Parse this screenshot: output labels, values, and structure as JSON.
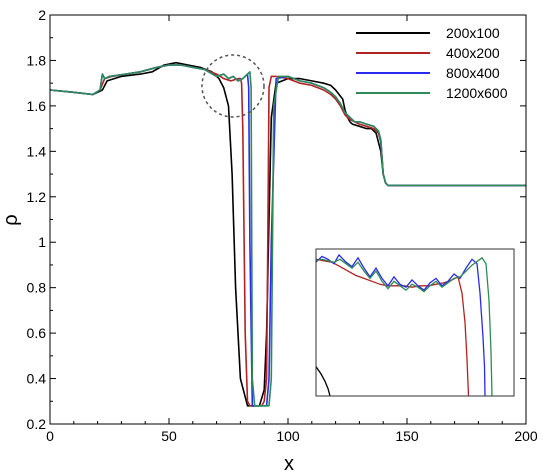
{
  "chart_data": {
    "type": "line",
    "xlabel": "x",
    "ylabel": "ρ",
    "xlim": [
      0,
      200
    ],
    "ylim": [
      0.2,
      2.0
    ],
    "xticks": [
      0,
      50,
      100,
      150,
      200
    ],
    "xtick_labels": [
      "0",
      "50",
      "100",
      "150",
      "200"
    ],
    "yticks": [
      0.2,
      0.4,
      0.6,
      0.8,
      1.0,
      1.2,
      1.4,
      1.6,
      1.8,
      2.0
    ],
    "ytick_labels": [
      "0.2",
      "0.4",
      "0.6",
      "0.8",
      "1",
      "1.2",
      "1.4",
      "1.6",
      "1.8",
      "2"
    ],
    "grid": false,
    "legend_position": "top-right",
    "series": [
      {
        "name": "200x100",
        "color": "#000000",
        "x": [
          0,
          10,
          18,
          22,
          24,
          30,
          38,
          43,
          48,
          53,
          58,
          63,
          68,
          71,
          73,
          75,
          76.5,
          78,
          80,
          83,
          84,
          86,
          88,
          90,
          91,
          92,
          93,
          95,
          100,
          105,
          110,
          115,
          118,
          120,
          123,
          124,
          125,
          126,
          127,
          130,
          133,
          135,
          137,
          139,
          140,
          141,
          142,
          145,
          150,
          160,
          175,
          190,
          200
        ],
        "y": [
          1.67,
          1.66,
          1.65,
          1.67,
          1.71,
          1.73,
          1.74,
          1.75,
          1.78,
          1.79,
          1.78,
          1.77,
          1.75,
          1.72,
          1.68,
          1.6,
          1.3,
          0.8,
          0.4,
          0.28,
          0.28,
          0.28,
          0.28,
          0.35,
          0.6,
          1.1,
          1.55,
          1.7,
          1.72,
          1.72,
          1.71,
          1.7,
          1.69,
          1.67,
          1.63,
          1.58,
          1.55,
          1.53,
          1.52,
          1.51,
          1.5,
          1.5,
          1.48,
          1.4,
          1.3,
          1.26,
          1.25,
          1.25,
          1.25,
          1.25,
          1.25,
          1.25,
          1.25
        ]
      },
      {
        "name": "400x200",
        "color": "#b22222",
        "x": [
          0,
          10,
          18,
          21,
          23,
          26,
          32,
          38,
          45,
          50,
          55,
          60,
          65,
          70,
          73,
          76,
          79,
          80,
          80.5,
          81,
          82,
          83,
          84,
          85,
          86,
          87,
          88,
          89,
          90,
          91,
          91.5,
          92,
          93,
          95,
          100,
          105,
          110,
          115,
          118,
          120,
          122,
          124,
          126,
          128,
          130,
          133,
          136,
          138,
          139,
          140,
          141,
          142,
          145,
          150,
          170,
          200
        ],
        "y": [
          1.67,
          1.66,
          1.65,
          1.67,
          1.72,
          1.73,
          1.74,
          1.75,
          1.77,
          1.78,
          1.78,
          1.77,
          1.76,
          1.74,
          1.72,
          1.71,
          1.72,
          1.72,
          1.7,
          1.5,
          0.6,
          0.3,
          0.28,
          0.28,
          0.28,
          0.28,
          0.28,
          0.28,
          0.3,
          0.4,
          1.0,
          1.68,
          1.73,
          1.73,
          1.72,
          1.7,
          1.69,
          1.67,
          1.65,
          1.63,
          1.6,
          1.56,
          1.54,
          1.53,
          1.52,
          1.51,
          1.5,
          1.48,
          1.44,
          1.3,
          1.26,
          1.25,
          1.25,
          1.25,
          1.25,
          1.25
        ]
      },
      {
        "name": "800x400",
        "color": "#2a2aee",
        "x": [
          0,
          10,
          18,
          21,
          22,
          23,
          25,
          32,
          38,
          45,
          50,
          55,
          60,
          65,
          70,
          73,
          75,
          77,
          79,
          81,
          82,
          83,
          83.5,
          84,
          85,
          86,
          88,
          89,
          90,
          91,
          92,
          93,
          95,
          100,
          105,
          110,
          115,
          118,
          120,
          122,
          124,
          126,
          128,
          130,
          133,
          136,
          138,
          139,
          140,
          141,
          142,
          145,
          150,
          170,
          200
        ],
        "y": [
          1.67,
          1.66,
          1.65,
          1.67,
          1.74,
          1.72,
          1.73,
          1.74,
          1.75,
          1.77,
          1.78,
          1.78,
          1.77,
          1.76,
          1.73,
          1.74,
          1.72,
          1.73,
          1.71,
          1.72,
          1.73,
          1.74,
          1.68,
          1.0,
          0.28,
          0.28,
          0.28,
          0.28,
          0.28,
          0.28,
          0.4,
          1.0,
          1.72,
          1.73,
          1.71,
          1.7,
          1.68,
          1.66,
          1.64,
          1.61,
          1.57,
          1.55,
          1.53,
          1.53,
          1.52,
          1.51,
          1.49,
          1.45,
          1.3,
          1.26,
          1.25,
          1.25,
          1.25,
          1.25,
          1.25
        ]
      },
      {
        "name": "1200x600",
        "color": "#2e8b57",
        "x": [
          0,
          10,
          18,
          21,
          22,
          23,
          25,
          32,
          38,
          45,
          50,
          55,
          60,
          65,
          70,
          73,
          75,
          77,
          79,
          81,
          82,
          83,
          84,
          84.5,
          85,
          86,
          88,
          89,
          90,
          91,
          92,
          93,
          94,
          96,
          100,
          105,
          110,
          115,
          118,
          120,
          122,
          124,
          126,
          128,
          130,
          133,
          136,
          138,
          139,
          140,
          141,
          142,
          145,
          150,
          170,
          200
        ],
        "y": [
          1.67,
          1.66,
          1.65,
          1.67,
          1.74,
          1.72,
          1.73,
          1.74,
          1.75,
          1.77,
          1.78,
          1.78,
          1.77,
          1.76,
          1.73,
          1.74,
          1.72,
          1.73,
          1.71,
          1.72,
          1.73,
          1.74,
          1.75,
          1.68,
          0.4,
          0.28,
          0.28,
          0.28,
          0.28,
          0.28,
          0.28,
          0.4,
          1.6,
          1.73,
          1.73,
          1.71,
          1.7,
          1.68,
          1.66,
          1.64,
          1.61,
          1.57,
          1.55,
          1.53,
          1.53,
          1.52,
          1.51,
          1.49,
          1.45,
          1.3,
          1.26,
          1.25,
          1.25,
          1.25,
          1.25,
          1.25
        ]
      }
    ]
  },
  "inset": {
    "type": "line",
    "series": [
      {
        "name": "200x100",
        "color": "#000000",
        "points": [
          [
            0,
            0.8
          ],
          [
            5,
            0.85
          ],
          [
            9,
            0.9
          ],
          [
            12,
            0.95
          ],
          [
            14,
            1.0
          ]
        ]
      },
      {
        "name": "400x200",
        "color": "#b22222",
        "points": [
          [
            0,
            0.07
          ],
          [
            8,
            0.08
          ],
          [
            16,
            0.09
          ],
          [
            24,
            0.12
          ],
          [
            32,
            0.15
          ],
          [
            40,
            0.18
          ],
          [
            48,
            0.2
          ],
          [
            56,
            0.22
          ],
          [
            64,
            0.24
          ],
          [
            72,
            0.25
          ],
          [
            80,
            0.25
          ],
          [
            88,
            0.25
          ],
          [
            96,
            0.26
          ],
          [
            104,
            0.25
          ],
          [
            112,
            0.25
          ],
          [
            120,
            0.24
          ],
          [
            128,
            0.23
          ],
          [
            136,
            0.21
          ],
          [
            142,
            0.19
          ],
          [
            146,
            0.3
          ],
          [
            149,
            0.5
          ],
          [
            151,
            0.75
          ],
          [
            152.5,
            1.0
          ]
        ]
      },
      {
        "name": "800x400",
        "color": "#2a2aee",
        "points": [
          [
            0,
            0.09
          ],
          [
            6,
            0.05
          ],
          [
            12,
            0.07
          ],
          [
            18,
            0.1
          ],
          [
            23,
            0.04
          ],
          [
            30,
            0.09
          ],
          [
            36,
            0.12
          ],
          [
            42,
            0.06
          ],
          [
            48,
            0.13
          ],
          [
            54,
            0.19
          ],
          [
            60,
            0.13
          ],
          [
            66,
            0.2
          ],
          [
            72,
            0.25
          ],
          [
            78,
            0.19
          ],
          [
            84,
            0.24
          ],
          [
            90,
            0.26
          ],
          [
            96,
            0.21
          ],
          [
            102,
            0.25
          ],
          [
            108,
            0.28
          ],
          [
            114,
            0.23
          ],
          [
            120,
            0.2
          ],
          [
            126,
            0.25
          ],
          [
            132,
            0.22
          ],
          [
            138,
            0.17
          ],
          [
            144,
            0.2
          ],
          [
            150,
            0.13
          ],
          [
            156,
            0.07
          ],
          [
            161,
            0.1
          ],
          [
            164,
            0.3
          ],
          [
            167,
            0.6
          ],
          [
            168.5,
            0.8
          ],
          [
            169,
            1.0
          ]
        ]
      },
      {
        "name": "1200x600",
        "color": "#2e8b57",
        "points": [
          [
            0,
            0.08
          ],
          [
            6,
            0.07
          ],
          [
            12,
            0.08
          ],
          [
            18,
            0.09
          ],
          [
            24,
            0.07
          ],
          [
            30,
            0.1
          ],
          [
            36,
            0.13
          ],
          [
            42,
            0.09
          ],
          [
            48,
            0.15
          ],
          [
            54,
            0.2
          ],
          [
            60,
            0.15
          ],
          [
            66,
            0.22
          ],
          [
            72,
            0.27
          ],
          [
            78,
            0.22
          ],
          [
            84,
            0.25
          ],
          [
            90,
            0.28
          ],
          [
            96,
            0.24
          ],
          [
            102,
            0.26
          ],
          [
            108,
            0.29
          ],
          [
            114,
            0.25
          ],
          [
            120,
            0.22
          ],
          [
            126,
            0.26
          ],
          [
            132,
            0.23
          ],
          [
            138,
            0.2
          ],
          [
            144,
            0.19
          ],
          [
            150,
            0.15
          ],
          [
            156,
            0.11
          ],
          [
            162,
            0.08
          ],
          [
            166,
            0.06
          ],
          [
            170,
            0.1
          ],
          [
            173,
            0.35
          ],
          [
            175,
            0.7
          ],
          [
            176,
            1.0
          ]
        ]
      }
    ]
  }
}
